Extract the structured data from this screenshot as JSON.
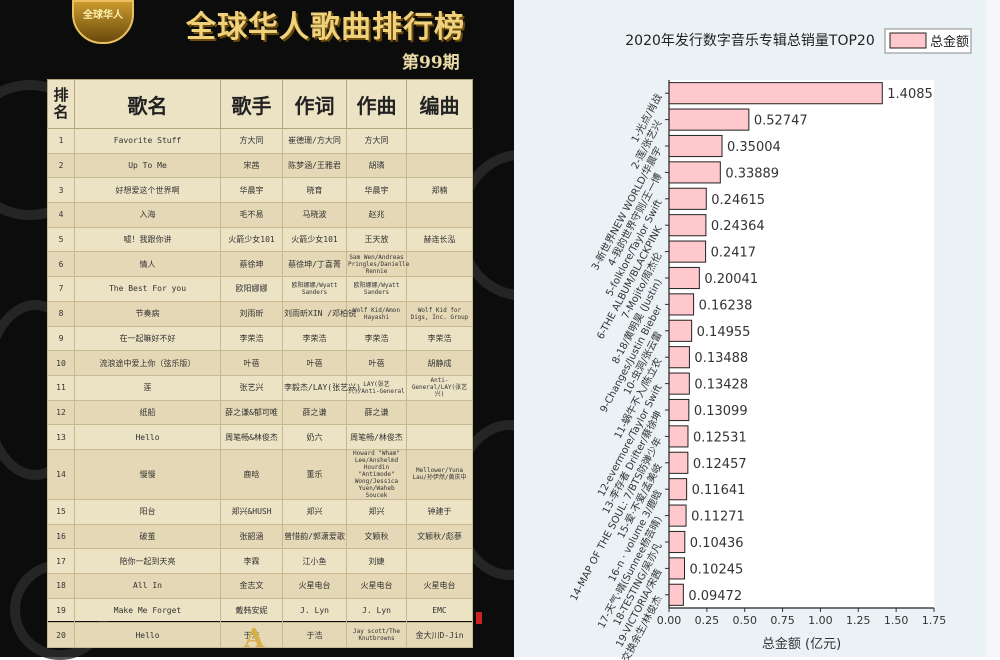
{
  "left_panel": {
    "logo_text": "全球华人",
    "title": "全球华人歌曲排行榜",
    "issue": "第99期",
    "headers": [
      "排名",
      "歌名",
      "歌手",
      "作词",
      "作曲",
      "编曲"
    ],
    "rows": [
      [
        "1",
        "Favorite Stuff",
        "方大同",
        "崔德珊/方大同",
        "方大同",
        ""
      ],
      [
        "2",
        "Up To Me",
        "宋茜",
        "陈梦涵/王雅君",
        "胡璘",
        ""
      ],
      [
        "3",
        "好想爱这个世界啊",
        "华晨宇",
        "晓育",
        "华晨宇",
        "郑楠"
      ],
      [
        "4",
        "入海",
        "毛不易",
        "马晓波",
        "赵兆",
        ""
      ],
      [
        "5",
        "嘘！我跟你讲",
        "火箭少女101",
        "火箭少女101",
        "王天放",
        "赫连长泓"
      ],
      [
        "6",
        "情人",
        "蔡徐坤",
        "蔡徐坤/丁喜菁",
        "Sam Wen/Andreas Pringles/Danielle Rennie",
        ""
      ],
      [
        "7",
        "The Best For you",
        "欧阳娜娜",
        "欧阳娜娜/Wyatt Sanders",
        "欧阳娜娜/Wyatt Sanders",
        ""
      ],
      [
        "8",
        "节奏病",
        "刘雨昕",
        "刘雨昕XIN /邓柏锐",
        "Wolf Kid/Amon Hayashi",
        "Wolf Kid for Digs, Inc. Group"
      ],
      [
        "9",
        "在一起嘛好不好",
        "李荣浩",
        "李荣浩",
        "李荣浩",
        "李荣浩"
      ],
      [
        "10",
        "流浪途中爱上你（弦乐版）",
        "叶蓓",
        "叶蓓",
        "叶蓓",
        "胡静成"
      ],
      [
        "11",
        "莲",
        "张艺兴",
        "李毅杰/LAY(张艺兴)",
        "LAY(张艺兴)/Anti-General",
        "Anti-General/LAY(张艺兴)"
      ],
      [
        "12",
        "纸船",
        "薛之谦&郁可唯",
        "薛之谦",
        "薛之谦",
        ""
      ],
      [
        "13",
        "Hello",
        "周笔畅&林俊杰",
        "奶六",
        "周笔畅/林俊杰",
        ""
      ],
      [
        "14",
        "慢慢",
        "鹿晗",
        "董乐",
        "Howard \"Wham\" Lee/Anshelmd Hourdin \"Antimode\" Wong/Jessica Yuen/Waheb Soucek",
        "Mellower/Yuna Lau/孙伊然/黄庆中"
      ],
      [
        "15",
        "阳台",
        "郑兴&HUSH",
        "郑兴",
        "郑兴",
        "钟建于"
      ],
      [
        "16",
        "破茧",
        "张韶涵",
        "曾惜韵/郭潇爱歌",
        "文颖秋",
        "文颖秋/彪蔘"
      ],
      [
        "17",
        "陪你一起到天亮",
        "李霖",
        "江小鱼",
        "刘婕",
        ""
      ],
      [
        "18",
        "All In",
        "金志文",
        "火星电台",
        "火星电台",
        "火星电台"
      ],
      [
        "19",
        "Make Me Forget",
        "戴韩安妮",
        "J. Lyn",
        "J. Lyn",
        "EMC"
      ],
      [
        "20",
        "Hello",
        "于浩",
        "于浩",
        "Jay scott/The Knutbrowns",
        "金大川D-Jin"
      ]
    ],
    "bottom_logo": "A"
  },
  "chart_data": {
    "type": "bar",
    "orientation": "horizontal",
    "title": "2020年发行数字音乐专辑总销量TOP20",
    "xlabel": "总金额 (亿元)",
    "ylabel": "",
    "xlim": [
      0,
      1.75
    ],
    "xticks": [
      "0.00",
      "0.25",
      "0.50",
      "0.75",
      "1.00",
      "1.25",
      "1.50",
      "1.75"
    ],
    "legend": "top-right",
    "categories": [
      "1-光点/肖战",
      "2-莲/张艺兴",
      "3-新世界NEW WORLD/华晨宇",
      "4-我的世界守则/王一博",
      "5-folklore/Taylor Swift",
      "6-THE ALBUM/BLACKPINK",
      "7-Mojito/周杰伦",
      "8-18/黄明昊 (Justin)",
      "9-Changes/Justin Bieber",
      "10-虫洞/张云雷",
      "11-蜗牛不入/陈立农",
      "12-evermore/Taylor Swift",
      "13-李存者 Drifter/蔡徐坤",
      "14-MAP OF THE SOUL: 7/BTS防弹少年",
      "15-爱·不爱/孟美岐",
      "16-n · volume 3/鹿晗",
      "17-天气·晴(Sunnee杨芸晴)",
      "18-TESTING/吴亦凡",
      "19-VICTORIA/宋茜",
      "20-交换余生/林俊杰"
    ],
    "series": [
      {
        "name": "总金额",
        "values": [
          1.4085,
          0.52747,
          0.35004,
          0.33889,
          0.24615,
          0.24364,
          0.2417,
          0.20041,
          0.16238,
          0.14955,
          0.13488,
          0.13428,
          0.13099,
          0.12531,
          0.12457,
          0.11641,
          0.11271,
          0.10436,
          0.10245,
          0.09472
        ],
        "labels": [
          "1.4085",
          "0.52747",
          "0.35004",
          "0.33889",
          "0.24615",
          "0.24364",
          "0.2417",
          "0.20041",
          "0.16238",
          "0.14955",
          "0.13488",
          "0.13428",
          "0.13099",
          "0.12531",
          "0.12457",
          "0.11641",
          "0.11271",
          "0.10436",
          "0.10245",
          "0.09472"
        ],
        "color": "#ffc8cc"
      }
    ]
  }
}
